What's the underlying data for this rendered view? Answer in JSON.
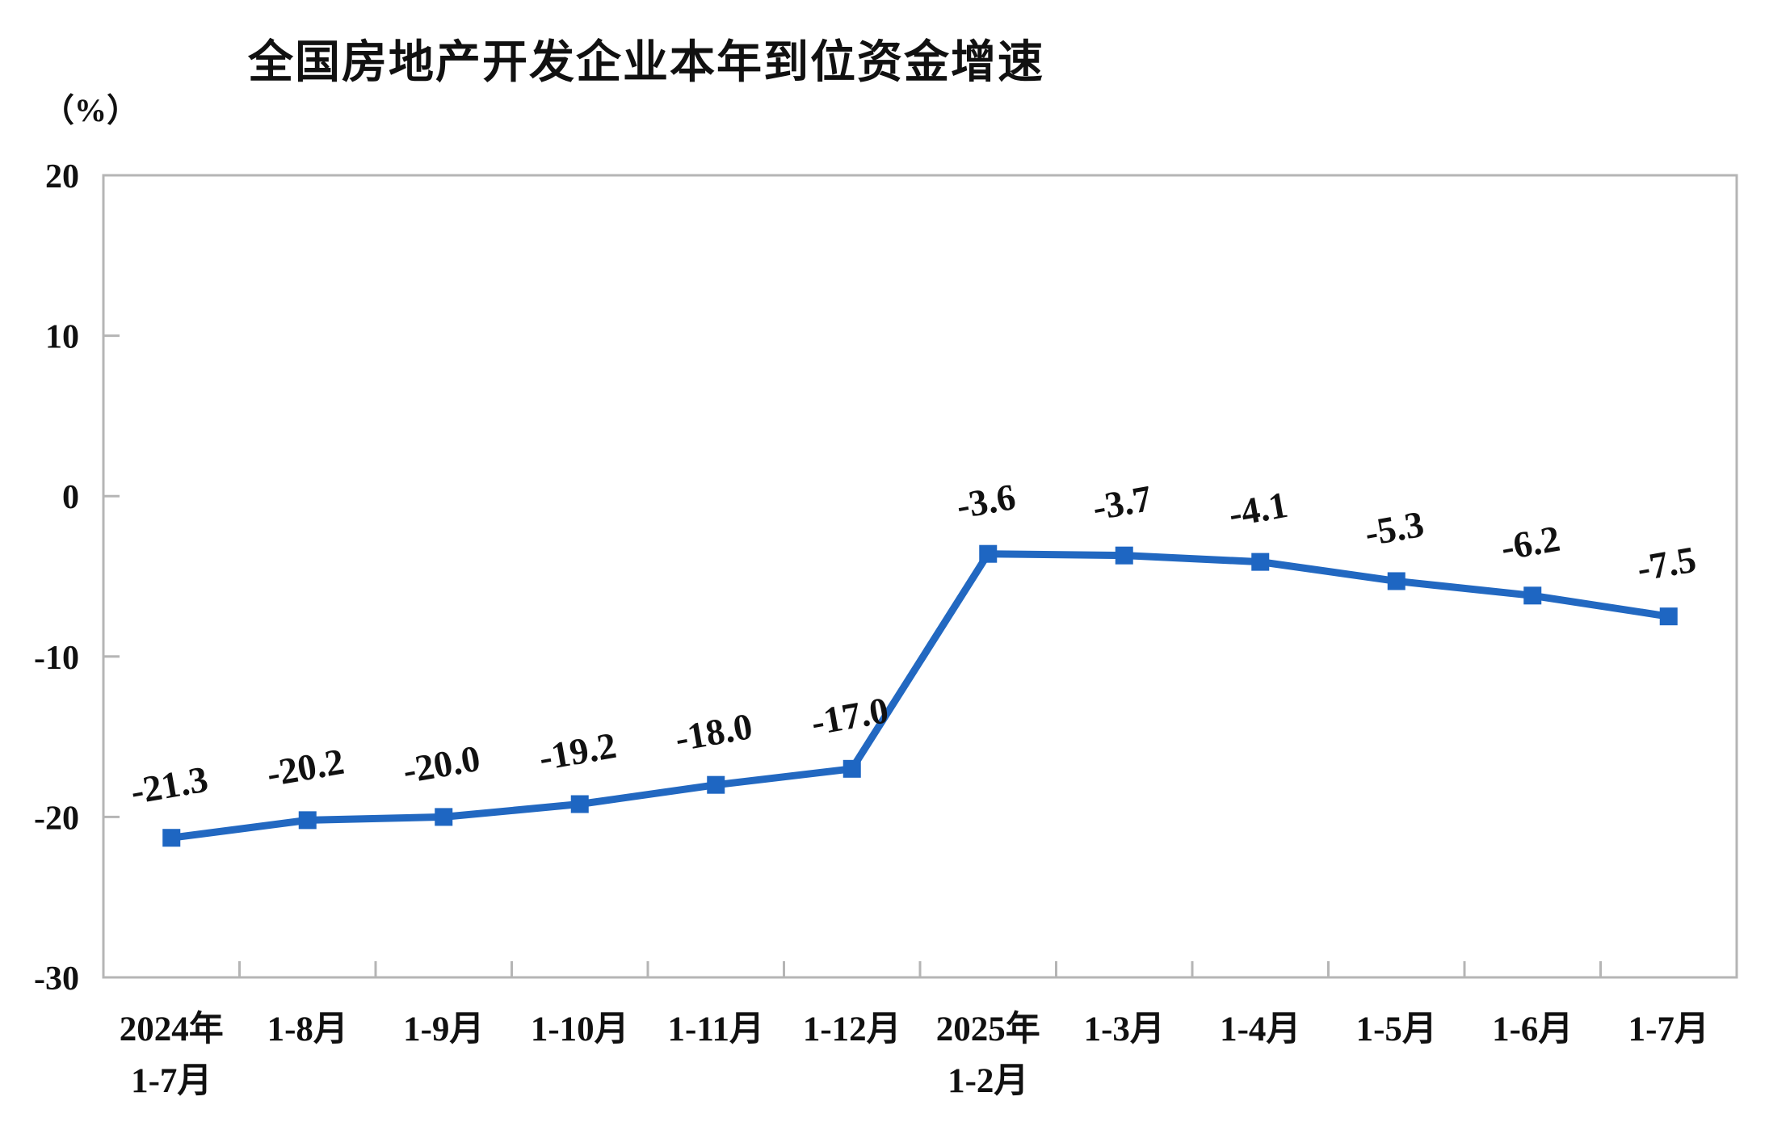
{
  "chart_data": {
    "type": "line",
    "title": "全国房地产开发企业本年到位资金增速",
    "unit_label": "（%）",
    "categories": [
      "2024年\n1-7月",
      "1-8月",
      "1-9月",
      "1-10月",
      "1-11月",
      "1-12月",
      "2025年\n1-2月",
      "1-3月",
      "1-4月",
      "1-5月",
      "1-6月",
      "1-7月"
    ],
    "values": [
      -21.3,
      -20.2,
      -20.0,
      -19.2,
      -18.0,
      -17.0,
      -3.6,
      -3.7,
      -4.1,
      -5.3,
      -6.2,
      -7.5
    ],
    "value_labels": [
      "-21.3",
      "-20.2",
      "-20.0",
      "-19.2",
      "-18.0",
      "-17.0",
      "-3.6",
      "-3.7",
      "-4.1",
      "-5.3",
      "-6.2",
      "-7.5"
    ],
    "xlabel": "",
    "ylabel": "（%）",
    "ylim": [
      -30,
      20
    ],
    "y_ticks": [
      20,
      10,
      0,
      -10,
      -20,
      -30
    ],
    "grid": false,
    "legend": "none",
    "marker_shape": "square",
    "value_label_rotation_deg": -10,
    "colors": {
      "line": "#2268C1",
      "marker": "#1E66C2",
      "axis": "#B5B5B5",
      "text": "#111111"
    }
  }
}
